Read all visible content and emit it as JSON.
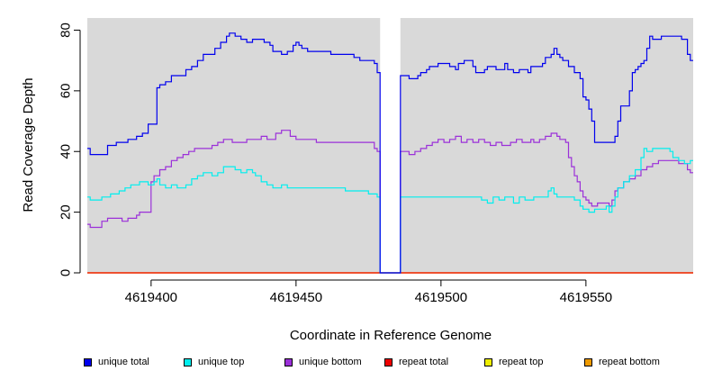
{
  "chart_data": {
    "type": "line",
    "xlabel": "Coordinate in Reference Genome",
    "ylabel": "Read Coverage Depth",
    "xlim": [
      4619378,
      4619587
    ],
    "ylim": [
      0,
      84
    ],
    "x_ticks": [
      4619400,
      4619450,
      4619500,
      4619550
    ],
    "y_ticks": [
      0,
      20,
      40,
      60,
      80
    ],
    "x_tick_labels": [
      "4619400",
      "4619450",
      "4619500",
      "4619550"
    ],
    "y_tick_labels": [
      "0",
      "20",
      "40",
      "60",
      "80"
    ],
    "background": "#d9d9d9",
    "gap": [
      4619479,
      4619486
    ],
    "legend_position": "bottom",
    "series": [
      {
        "name": "unique total",
        "color": "#0000ee",
        "points": [
          [
            4619378,
            41
          ],
          [
            4619379,
            39
          ],
          [
            4619385,
            42
          ],
          [
            4619388,
            43
          ],
          [
            4619392,
            44
          ],
          [
            4619395,
            45
          ],
          [
            4619397,
            46
          ],
          [
            4619399,
            49
          ],
          [
            4619402,
            61
          ],
          [
            4619403,
            62
          ],
          [
            4619405,
            63
          ],
          [
            4619407,
            65
          ],
          [
            4619412,
            67
          ],
          [
            4619414,
            68
          ],
          [
            4619416,
            70
          ],
          [
            4619418,
            72
          ],
          [
            4619422,
            74
          ],
          [
            4619424,
            76
          ],
          [
            4619426,
            78
          ],
          [
            4619427,
            79
          ],
          [
            4619429,
            78
          ],
          [
            4619431,
            77
          ],
          [
            4619433,
            76
          ],
          [
            4619435,
            77
          ],
          [
            4619439,
            76
          ],
          [
            4619441,
            75
          ],
          [
            4619442,
            73
          ],
          [
            4619445,
            72
          ],
          [
            4619447,
            73
          ],
          [
            4619449,
            75
          ],
          [
            4619450,
            76
          ],
          [
            4619451,
            75
          ],
          [
            4619452,
            74
          ],
          [
            4619454,
            73
          ],
          [
            4619462,
            72
          ],
          [
            4619470,
            71
          ],
          [
            4619472,
            70
          ],
          [
            4619477,
            69
          ],
          [
            4619478,
            66
          ],
          [
            4619479,
            0
          ],
          [
            4619486,
            65
          ],
          [
            4619489,
            64
          ],
          [
            4619492,
            65
          ],
          [
            4619493,
            66
          ],
          [
            4619495,
            67
          ],
          [
            4619496,
            68
          ],
          [
            4619499,
            69
          ],
          [
            4619503,
            68
          ],
          [
            4619505,
            67
          ],
          [
            4619506,
            69
          ],
          [
            4619508,
            70
          ],
          [
            4619511,
            68
          ],
          [
            4619512,
            66
          ],
          [
            4619515,
            67
          ],
          [
            4619516,
            68
          ],
          [
            4619519,
            67
          ],
          [
            4619522,
            69
          ],
          [
            4619523,
            67
          ],
          [
            4619525,
            66
          ],
          [
            4619527,
            67
          ],
          [
            4619530,
            66
          ],
          [
            4619531,
            68
          ],
          [
            4619535,
            69
          ],
          [
            4619536,
            71
          ],
          [
            4619538,
            72
          ],
          [
            4619539,
            74
          ],
          [
            4619540,
            72
          ],
          [
            4619541,
            71
          ],
          [
            4619542,
            70
          ],
          [
            4619544,
            68
          ],
          [
            4619546,
            66
          ],
          [
            4619548,
            64
          ],
          [
            4619549,
            58
          ],
          [
            4619550,
            57
          ],
          [
            4619551,
            54
          ],
          [
            4619552,
            50
          ],
          [
            4619553,
            43
          ],
          [
            4619560,
            45
          ],
          [
            4619561,
            50
          ],
          [
            4619562,
            55
          ],
          [
            4619565,
            60
          ],
          [
            4619566,
            66
          ],
          [
            4619567,
            67
          ],
          [
            4619568,
            68
          ],
          [
            4619569,
            69
          ],
          [
            4619570,
            70
          ],
          [
            4619571,
            74
          ],
          [
            4619572,
            78
          ],
          [
            4619573,
            77
          ],
          [
            4619576,
            78
          ],
          [
            4619583,
            77
          ],
          [
            4619585,
            72
          ],
          [
            4619586,
            70
          ]
        ]
      },
      {
        "name": "unique top",
        "color": "#00eeee",
        "points": [
          [
            4619378,
            25
          ],
          [
            4619379,
            24
          ],
          [
            4619383,
            25
          ],
          [
            4619386,
            26
          ],
          [
            4619389,
            27
          ],
          [
            4619391,
            28
          ],
          [
            4619393,
            29
          ],
          [
            4619396,
            30
          ],
          [
            4619399,
            29
          ],
          [
            4619401,
            30
          ],
          [
            4619402,
            31
          ],
          [
            4619403,
            29
          ],
          [
            4619405,
            28
          ],
          [
            4619407,
            29
          ],
          [
            4619409,
            28
          ],
          [
            4619412,
            29
          ],
          [
            4619414,
            31
          ],
          [
            4619416,
            32
          ],
          [
            4619418,
            33
          ],
          [
            4619421,
            32
          ],
          [
            4619423,
            33
          ],
          [
            4619425,
            35
          ],
          [
            4619429,
            34
          ],
          [
            4619431,
            33
          ],
          [
            4619433,
            34
          ],
          [
            4619435,
            33
          ],
          [
            4619436,
            32
          ],
          [
            4619438,
            30
          ],
          [
            4619440,
            29
          ],
          [
            4619442,
            28
          ],
          [
            4619445,
            29
          ],
          [
            4619447,
            28
          ],
          [
            4619467,
            27
          ],
          [
            4619475,
            26
          ],
          [
            4619478,
            25
          ],
          [
            4619479,
            0
          ],
          [
            4619486,
            25
          ],
          [
            4619514,
            24
          ],
          [
            4619516,
            23
          ],
          [
            4619518,
            25
          ],
          [
            4619520,
            24
          ],
          [
            4619522,
            25
          ],
          [
            4619525,
            23
          ],
          [
            4619527,
            25
          ],
          [
            4619529,
            24
          ],
          [
            4619532,
            25
          ],
          [
            4619537,
            27
          ],
          [
            4619538,
            28
          ],
          [
            4619539,
            26
          ],
          [
            4619540,
            25
          ],
          [
            4619546,
            24
          ],
          [
            4619548,
            22
          ],
          [
            4619549,
            21
          ],
          [
            4619551,
            20
          ],
          [
            4619553,
            21
          ],
          [
            4619557,
            22
          ],
          [
            4619558,
            20
          ],
          [
            4619559,
            22
          ],
          [
            4619560,
            25
          ],
          [
            4619561,
            28
          ],
          [
            4619563,
            30
          ],
          [
            4619565,
            32
          ],
          [
            4619567,
            34
          ],
          [
            4619569,
            38
          ],
          [
            4619570,
            41
          ],
          [
            4619571,
            40
          ],
          [
            4619573,
            41
          ],
          [
            4619576,
            41
          ],
          [
            4619579,
            40
          ],
          [
            4619580,
            38
          ],
          [
            4619582,
            37
          ],
          [
            4619584,
            36
          ],
          [
            4619586,
            37
          ]
        ]
      },
      {
        "name": "unique bottom",
        "color": "#9b30d9",
        "points": [
          [
            4619378,
            16
          ],
          [
            4619379,
            15
          ],
          [
            4619383,
            17
          ],
          [
            4619385,
            18
          ],
          [
            4619390,
            17
          ],
          [
            4619392,
            18
          ],
          [
            4619395,
            19
          ],
          [
            4619396,
            20
          ],
          [
            4619400,
            30
          ],
          [
            4619401,
            32
          ],
          [
            4619403,
            34
          ],
          [
            4619405,
            35
          ],
          [
            4619407,
            37
          ],
          [
            4619409,
            38
          ],
          [
            4619411,
            39
          ],
          [
            4619413,
            40
          ],
          [
            4619415,
            41
          ],
          [
            4619421,
            42
          ],
          [
            4619423,
            43
          ],
          [
            4619425,
            44
          ],
          [
            4619428,
            43
          ],
          [
            4619433,
            44
          ],
          [
            4619438,
            45
          ],
          [
            4619440,
            44
          ],
          [
            4619443,
            46
          ],
          [
            4619445,
            47
          ],
          [
            4619448,
            45
          ],
          [
            4619450,
            44
          ],
          [
            4619457,
            43
          ],
          [
            4619477,
            41
          ],
          [
            4619478,
            40
          ],
          [
            4619479,
            0
          ],
          [
            4619486,
            40
          ],
          [
            4619489,
            39
          ],
          [
            4619491,
            40
          ],
          [
            4619493,
            41
          ],
          [
            4619495,
            42
          ],
          [
            4619497,
            43
          ],
          [
            4619499,
            44
          ],
          [
            4619501,
            43
          ],
          [
            4619503,
            44
          ],
          [
            4619505,
            45
          ],
          [
            4619507,
            43
          ],
          [
            4619509,
            44
          ],
          [
            4619511,
            43
          ],
          [
            4619513,
            44
          ],
          [
            4619515,
            43
          ],
          [
            4619517,
            42
          ],
          [
            4619519,
            43
          ],
          [
            4619521,
            42
          ],
          [
            4619524,
            43
          ],
          [
            4619526,
            44
          ],
          [
            4619528,
            43
          ],
          [
            4619531,
            44
          ],
          [
            4619532,
            43
          ],
          [
            4619534,
            44
          ],
          [
            4619536,
            45
          ],
          [
            4619538,
            46
          ],
          [
            4619540,
            45
          ],
          [
            4619541,
            44
          ],
          [
            4619543,
            43
          ],
          [
            4619544,
            38
          ],
          [
            4619545,
            35
          ],
          [
            4619546,
            32
          ],
          [
            4619547,
            30
          ],
          [
            4619548,
            27
          ],
          [
            4619549,
            25
          ],
          [
            4619550,
            24
          ],
          [
            4619551,
            23
          ],
          [
            4619552,
            22
          ],
          [
            4619554,
            23
          ],
          [
            4619558,
            22
          ],
          [
            4619559,
            24
          ],
          [
            4619560,
            27
          ],
          [
            4619561,
            28
          ],
          [
            4619563,
            30
          ],
          [
            4619565,
            31
          ],
          [
            4619567,
            32
          ],
          [
            4619569,
            34
          ],
          [
            4619571,
            35
          ],
          [
            4619573,
            36
          ],
          [
            4619575,
            37
          ],
          [
            4619582,
            36
          ],
          [
            4619585,
            34
          ],
          [
            4619586,
            33
          ]
        ]
      },
      {
        "name": "repeat total",
        "color": "#ee0000",
        "points": [
          [
            4619378,
            0
          ],
          [
            4619587,
            0
          ]
        ]
      },
      {
        "name": "repeat top",
        "color": "#eeee00",
        "points": [
          [
            4619378,
            0
          ],
          [
            4619587,
            0
          ]
        ]
      },
      {
        "name": "repeat bottom",
        "color": "#ee9a00",
        "points": [
          [
            4619378,
            0
          ],
          [
            4619587,
            0
          ]
        ]
      }
    ]
  }
}
